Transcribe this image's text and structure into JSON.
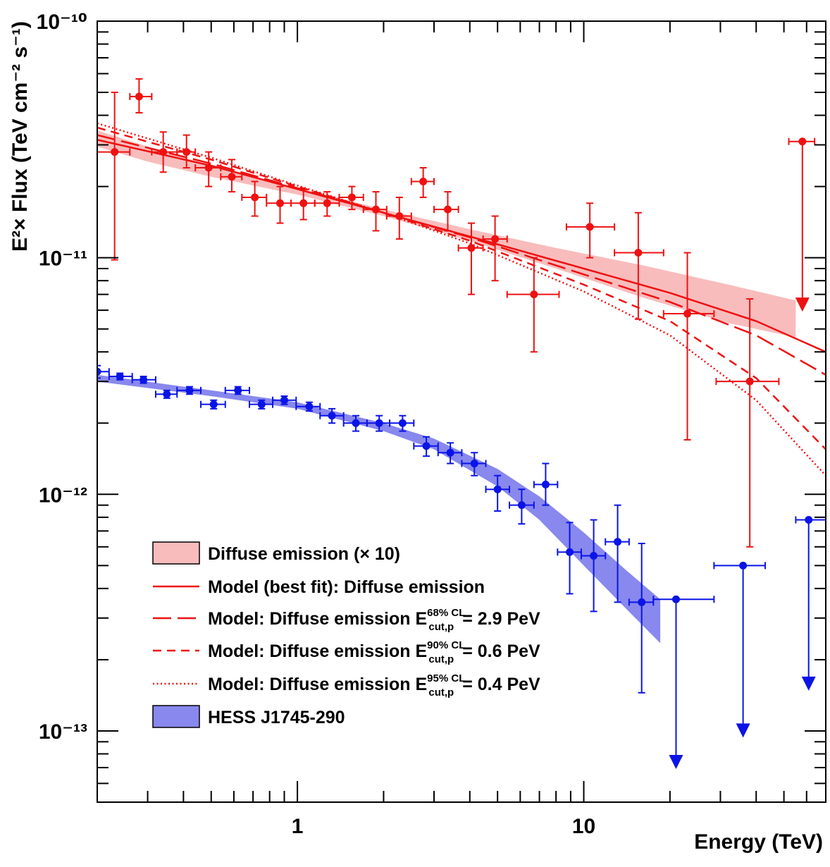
{
  "chart_data": {
    "type": "scatter",
    "xlabel": "Energy (TeV)",
    "ylabel": "E²× Flux (TeV cm⁻² s⁻¹)",
    "x_scale": "log",
    "y_scale": "log",
    "xlim": [
      0.2,
      70
    ],
    "ylim": [
      5e-14,
      1e-10
    ],
    "x_tick_labels": [
      "1",
      "10"
    ],
    "y_tick_labels": [
      "10⁻¹⁰",
      "10⁻¹¹",
      "10⁻¹²",
      "10⁻¹³"
    ],
    "grid": false,
    "legend_position": "bottom-left",
    "colors": {
      "red": "#ee1111",
      "red_band": "#f9bcbc",
      "blue": "#0a14e6",
      "blue_band": "#8888ee"
    },
    "legend": [
      {
        "kind": "band",
        "color": "#f9bcbc",
        "label": "Diffuse emission (× 10)"
      },
      {
        "kind": "line",
        "dash": "solid",
        "color": "#ee1111",
        "label": "Model (best fit): Diffuse emission"
      },
      {
        "kind": "line",
        "dash": "long-dash",
        "color": "#ee1111",
        "label": "Model: Diffuse emission",
        "sym": "E",
        "sup": "68% CL",
        "sub": "cut,p",
        "value": "= 2.9 PeV"
      },
      {
        "kind": "line",
        "dash": "dash",
        "color": "#ee1111",
        "label": "Model: Diffuse emission",
        "sym": "E",
        "sup": "90% CL",
        "sub": "cut,p",
        "value": "= 0.6 PeV"
      },
      {
        "kind": "line",
        "dash": "dot",
        "color": "#ee1111",
        "label": "Model: Diffuse emission",
        "sym": "E",
        "sup": "95% CL",
        "sub": "cut,p",
        "value": "= 0.4 PeV"
      },
      {
        "kind": "band",
        "color": "#8888ee",
        "label": "HESS J1745-290"
      }
    ],
    "diffuse_points": [
      {
        "x": 0.23,
        "y": 2.8e-11,
        "xlo": 0.2,
        "xhi": 0.26,
        "ylo": 9.8e-12,
        "yhi": 5e-11
      },
      {
        "x": 0.28,
        "y": 4.8e-11,
        "xlo": 0.26,
        "xhi": 0.31,
        "ylo": 4.1e-11,
        "yhi": 5.7e-11
      },
      {
        "x": 0.34,
        "y": 2.8e-11,
        "xlo": 0.31,
        "xhi": 0.38,
        "ylo": 2.3e-11,
        "yhi": 3.4e-11
      },
      {
        "x": 0.41,
        "y": 2.8e-11,
        "xlo": 0.38,
        "xhi": 0.44,
        "ylo": 2.4e-11,
        "yhi": 3.3e-11
      },
      {
        "x": 0.49,
        "y": 2.4e-11,
        "xlo": 0.44,
        "xhi": 0.54,
        "ylo": 2e-11,
        "yhi": 2.8e-11
      },
      {
        "x": 0.59,
        "y": 2.2e-11,
        "xlo": 0.54,
        "xhi": 0.64,
        "ylo": 1.9e-11,
        "yhi": 2.6e-11
      },
      {
        "x": 0.71,
        "y": 1.8e-11,
        "xlo": 0.64,
        "xhi": 0.78,
        "ylo": 1.5e-11,
        "yhi": 2.1e-11
      },
      {
        "x": 0.87,
        "y": 1.7e-11,
        "xlo": 0.78,
        "xhi": 0.95,
        "ylo": 1.4e-11,
        "yhi": 2e-11
      },
      {
        "x": 1.05,
        "y": 1.7e-11,
        "xlo": 0.95,
        "xhi": 1.15,
        "ylo": 1.45e-11,
        "yhi": 1.95e-11
      },
      {
        "x": 1.27,
        "y": 1.7e-11,
        "xlo": 1.15,
        "xhi": 1.4,
        "ylo": 1.5e-11,
        "yhi": 1.9e-11
      },
      {
        "x": 1.55,
        "y": 1.8e-11,
        "xlo": 1.4,
        "xhi": 1.7,
        "ylo": 1.6e-11,
        "yhi": 2e-11
      },
      {
        "x": 1.88,
        "y": 1.6e-11,
        "xlo": 1.7,
        "xhi": 2.05,
        "ylo": 1.3e-11,
        "yhi": 1.9e-11
      },
      {
        "x": 2.27,
        "y": 1.5e-11,
        "xlo": 2.05,
        "xhi": 2.5,
        "ylo": 1.2e-11,
        "yhi": 1.8e-11
      },
      {
        "x": 2.75,
        "y": 2.1e-11,
        "xlo": 2.5,
        "xhi": 3.0,
        "ylo": 1.8e-11,
        "yhi": 2.4e-11
      },
      {
        "x": 3.35,
        "y": 1.6e-11,
        "xlo": 3.0,
        "xhi": 3.65,
        "ylo": 1.3e-11,
        "yhi": 1.9e-11
      },
      {
        "x": 4.05,
        "y": 1.1e-11,
        "xlo": 3.65,
        "xhi": 4.45,
        "ylo": 7e-12,
        "yhi": 1.4e-11
      },
      {
        "x": 4.9,
        "y": 1.2e-11,
        "xlo": 4.45,
        "xhi": 5.4,
        "ylo": 8e-12,
        "yhi": 1.5e-11
      },
      {
        "x": 6.7,
        "y": 7e-12,
        "xlo": 5.4,
        "xhi": 8.2,
        "ylo": 4e-12,
        "yhi": 1e-11
      },
      {
        "x": 10.5,
        "y": 1.35e-11,
        "xlo": 8.7,
        "xhi": 12.8,
        "ylo": 1e-11,
        "yhi": 1.7e-11
      },
      {
        "x": 15.5,
        "y": 1.05e-11,
        "xlo": 12.8,
        "xhi": 19.0,
        "ylo": 5.5e-12,
        "yhi": 1.55e-11
      },
      {
        "x": 23.0,
        "y": 5.8e-12,
        "xlo": 19.0,
        "xhi": 28.5,
        "ylo": 1.7e-12,
        "yhi": 1.05e-11
      },
      {
        "x": 38.0,
        "y": 3e-12,
        "xlo": 29.0,
        "xhi": 48.0,
        "ylo": 6e-13,
        "yhi": 6.7e-12
      }
    ],
    "diffuse_upper_limits": [
      {
        "x": 58.0,
        "y": 3.1e-11,
        "xlo": 52.0,
        "xhi": 64.0,
        "arrow_to": 6e-12
      }
    ],
    "hess_points": [
      {
        "x": 0.2,
        "y": 3.3e-12,
        "xlo": 0.2,
        "xhi": 0.22,
        "ylo": 3.1e-12,
        "yhi": 3.5e-12
      },
      {
        "x": 0.24,
        "y": 3.15e-12,
        "xlo": 0.22,
        "xhi": 0.265,
        "ylo": 3.05e-12,
        "yhi": 3.25e-12
      },
      {
        "x": 0.29,
        "y": 3.05e-12,
        "xlo": 0.265,
        "xhi": 0.32,
        "ylo": 2.95e-12,
        "yhi": 3.15e-12
      },
      {
        "x": 0.35,
        "y": 2.65e-12,
        "xlo": 0.32,
        "xhi": 0.38,
        "ylo": 2.55e-12,
        "yhi": 2.75e-12
      },
      {
        "x": 0.42,
        "y": 2.75e-12,
        "xlo": 0.38,
        "xhi": 0.46,
        "ylo": 2.65e-12,
        "yhi": 2.85e-12
      },
      {
        "x": 0.51,
        "y": 2.4e-12,
        "xlo": 0.46,
        "xhi": 0.56,
        "ylo": 2.3e-12,
        "yhi": 2.5e-12
      },
      {
        "x": 0.62,
        "y": 2.75e-12,
        "xlo": 0.56,
        "xhi": 0.68,
        "ylo": 2.65e-12,
        "yhi": 2.85e-12
      },
      {
        "x": 0.75,
        "y": 2.4e-12,
        "xlo": 0.68,
        "xhi": 0.82,
        "ylo": 2.3e-12,
        "yhi": 2.5e-12
      },
      {
        "x": 0.9,
        "y": 2.5e-12,
        "xlo": 0.82,
        "xhi": 0.99,
        "ylo": 2.4e-12,
        "yhi": 2.6e-12
      },
      {
        "x": 1.1,
        "y": 2.35e-12,
        "xlo": 0.99,
        "xhi": 1.2,
        "ylo": 2.25e-12,
        "yhi": 2.45e-12
      },
      {
        "x": 1.32,
        "y": 2.15e-12,
        "xlo": 1.2,
        "xhi": 1.45,
        "ylo": 2e-12,
        "yhi": 2.3e-12
      },
      {
        "x": 1.6,
        "y": 2e-12,
        "xlo": 1.45,
        "xhi": 1.75,
        "ylo": 1.85e-12,
        "yhi": 2.15e-12
      },
      {
        "x": 1.93,
        "y": 2e-12,
        "xlo": 1.75,
        "xhi": 2.1,
        "ylo": 1.85e-12,
        "yhi": 2.15e-12
      },
      {
        "x": 2.33,
        "y": 2e-12,
        "xlo": 2.1,
        "xhi": 2.55,
        "ylo": 1.85e-12,
        "yhi": 2.15e-12
      },
      {
        "x": 2.82,
        "y": 1.6e-12,
        "xlo": 2.55,
        "xhi": 3.1,
        "ylo": 1.45e-12,
        "yhi": 1.75e-12
      },
      {
        "x": 3.42,
        "y": 1.5e-12,
        "xlo": 3.1,
        "xhi": 3.75,
        "ylo": 1.35e-12,
        "yhi": 1.65e-12
      },
      {
        "x": 4.15,
        "y": 1.35e-12,
        "xlo": 3.75,
        "xhi": 4.55,
        "ylo": 1.2e-12,
        "yhi": 1.5e-12
      },
      {
        "x": 5.0,
        "y": 1.05e-12,
        "xlo": 4.55,
        "xhi": 5.5,
        "ylo": 8.5e-13,
        "yhi": 1.2e-12
      },
      {
        "x": 6.07,
        "y": 9e-13,
        "xlo": 5.5,
        "xhi": 6.7,
        "ylo": 7.5e-13,
        "yhi": 1.05e-12
      },
      {
        "x": 7.36,
        "y": 1.1e-12,
        "xlo": 6.7,
        "xhi": 8.1,
        "ylo": 9e-13,
        "yhi": 1.35e-12
      },
      {
        "x": 8.93,
        "y": 5.7e-13,
        "xlo": 8.1,
        "xhi": 9.8,
        "ylo": 3.8e-13,
        "yhi": 7.6e-13
      },
      {
        "x": 10.83,
        "y": 5.5e-13,
        "xlo": 9.8,
        "xhi": 11.9,
        "ylo": 3.2e-13,
        "yhi": 7.8e-13
      },
      {
        "x": 13.13,
        "y": 6.3e-13,
        "xlo": 11.9,
        "xhi": 14.4,
        "ylo": 3.5e-13,
        "yhi": 9e-13
      },
      {
        "x": 15.93,
        "y": 3.5e-13,
        "xlo": 14.4,
        "xhi": 17.5,
        "ylo": 1.45e-13,
        "yhi": 6.2e-13
      }
    ],
    "hess_upper_limits": [
      {
        "x": 21.0,
        "y": 3.6e-13,
        "xlo": 17.5,
        "xhi": 28.5,
        "arrow_to": 7e-14
      },
      {
        "x": 36.0,
        "y": 5e-13,
        "xlo": 28.5,
        "xhi": 43.0,
        "arrow_to": 9.5e-14
      },
      {
        "x": 61.0,
        "y": 7.8e-13,
        "xlo": 55.0,
        "xhi": 70.0,
        "arrow_to": 1.5e-13
      }
    ],
    "diffuse_band": {
      "x": [
        0.2,
        0.3,
        0.5,
        1.0,
        2.0,
        4.0,
        8.0,
        16.0,
        32.0,
        55.0
      ],
      "lo": [
        2.95e-11,
        2.55e-11,
        2.2e-11,
        1.85e-11,
        1.5e-11,
        1.18e-11,
        9e-12,
        6.8e-12,
        5.3e-12,
        4.6e-12
      ],
      "hi": [
        3.45e-11,
        2.95e-11,
        2.45e-11,
        1.98e-11,
        1.6e-11,
        1.32e-11,
        1.1e-11,
        9.3e-12,
        7.7e-12,
        6.6e-12
      ]
    },
    "hess_band": {
      "x": [
        0.2,
        0.5,
        1.0,
        2.0,
        3.0,
        5.0,
        7.0,
        10.0,
        14.0,
        18.5
      ],
      "lo": [
        3e-12,
        2.6e-12,
        2.3e-12,
        1.85e-12,
        1.55e-12,
        1.08e-12,
        7.8e-13,
        5e-13,
        3.3e-13,
        2.35e-13
      ],
      "hi": [
        3.2e-12,
        2.75e-12,
        2.45e-12,
        2e-12,
        1.72e-12,
        1.28e-12,
        9.8e-13,
        6.9e-13,
        4.8e-13,
        3.6e-13
      ]
    },
    "model_lines": [
      {
        "name": "best",
        "dash": "solid",
        "x": [
          0.2,
          0.5,
          1.0,
          2.0,
          4.0,
          10.0,
          20.0,
          40.0,
          70.0
        ],
        "y": [
          3.15e-11,
          2.45e-11,
          1.95e-11,
          1.55e-11,
          1.23e-11,
          9e-12,
          7.1e-12,
          5.4e-12,
          4e-12
        ]
      },
      {
        "name": "68",
        "dash": "long-dash",
        "x": [
          0.2,
          0.5,
          1.0,
          2.0,
          4.0,
          10.0,
          20.0,
          40.0,
          70.0
        ],
        "y": [
          3.3e-11,
          2.5e-11,
          1.97e-11,
          1.55e-11,
          1.22e-11,
          8.5e-12,
          6.5e-12,
          4.7e-12,
          3.2e-12
        ]
      },
      {
        "name": "90",
        "dash": "dash",
        "x": [
          0.2,
          0.5,
          1.0,
          2.0,
          4.0,
          10.0,
          20.0,
          40.0,
          70.0
        ],
        "y": [
          3.55e-11,
          2.6e-11,
          2e-11,
          1.55e-11,
          1.18e-11,
          7.7e-12,
          5.4e-12,
          3.1e-12,
          1.55e-12
        ]
      },
      {
        "name": "95",
        "dash": "dot",
        "x": [
          0.2,
          0.5,
          1.0,
          2.0,
          4.0,
          10.0,
          20.0,
          40.0,
          70.0
        ],
        "y": [
          3.7e-11,
          2.65e-11,
          2.02e-11,
          1.55e-11,
          1.15e-11,
          7.2e-12,
          4.7e-12,
          2.5e-12,
          1.2e-12
        ]
      }
    ]
  }
}
